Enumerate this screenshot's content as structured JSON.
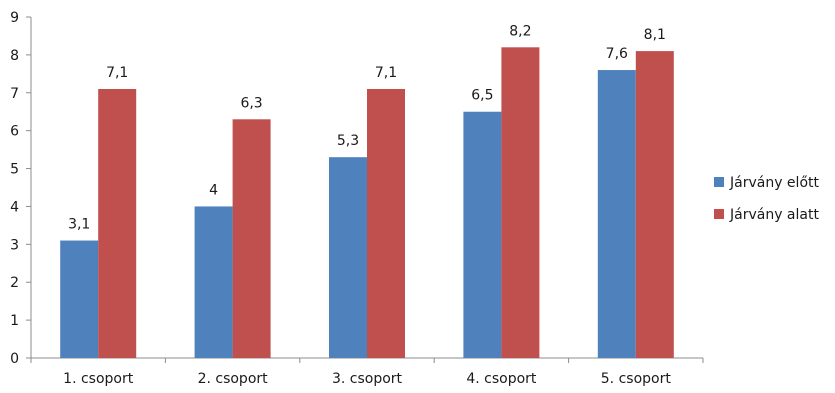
{
  "chart_data": {
    "type": "bar",
    "categories": [
      "1. csoport",
      "2. csoport",
      "3. csoport",
      "4. csoport",
      "5. csoport"
    ],
    "series": [
      {
        "name": "Járvány előtt",
        "values": [
          3.1,
          4,
          5.3,
          6.5,
          7.6
        ],
        "value_labels": [
          "3,1",
          "4",
          "5,3",
          "6,5",
          "7,6"
        ],
        "color": "#4F81BD"
      },
      {
        "name": "Járvány alatt",
        "values": [
          7.1,
          6.3,
          7.1,
          8.2,
          8.1
        ],
        "value_labels": [
          "7,1",
          "6,3",
          "7,1",
          "8,2",
          "8,1"
        ],
        "color": "#C0504D"
      }
    ],
    "ylim": [
      0,
      9
    ],
    "yticks": [
      0,
      1,
      2,
      3,
      4,
      5,
      6,
      7,
      8,
      9
    ],
    "grid": false,
    "legend_position": "right",
    "title": "",
    "xlabel": "",
    "ylabel": ""
  }
}
